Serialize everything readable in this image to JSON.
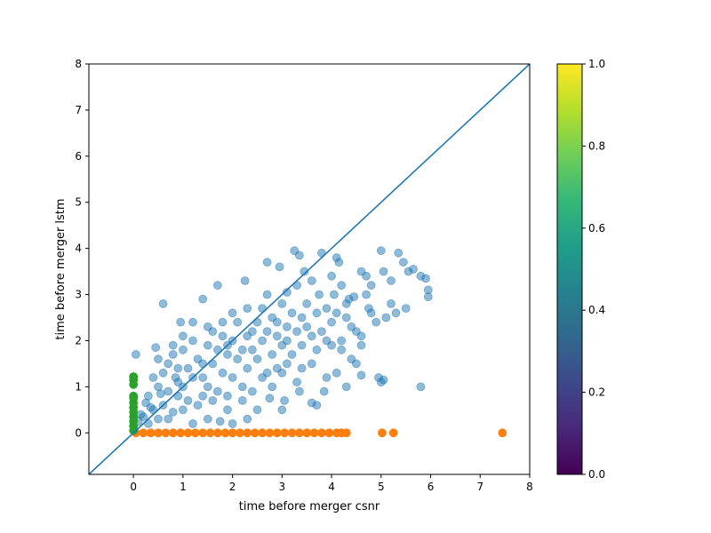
{
  "chart_data": {
    "type": "scatter",
    "title": "",
    "xlabel": "time before merger csnr",
    "ylabel": "time before merger lstm",
    "xlim": [
      -0.9,
      8
    ],
    "ylim": [
      -0.9,
      8
    ],
    "xticks": [
      0,
      1,
      2,
      3,
      4,
      5,
      6,
      7,
      8
    ],
    "yticks": [
      0,
      1,
      2,
      3,
      4,
      5,
      6,
      7,
      8
    ],
    "grid": false,
    "legend": "none",
    "reference_line": {
      "x": [
        -0.9,
        8
      ],
      "y": [
        -0.9,
        8
      ],
      "color": "#1f77b4"
    },
    "series": [
      {
        "color": "#1f77b4",
        "alpha": 0.5,
        "description_points": "dense cloud roughly following y = 0.65x",
        "points": [
          [
            0.05,
            1.7
          ],
          [
            0.6,
            2.8
          ],
          [
            0.95,
            2.4
          ],
          [
            1.4,
            2.9
          ],
          [
            1.7,
            3.2
          ],
          [
            2.25,
            3.3
          ],
          [
            2.7,
            3.7
          ],
          [
            2.95,
            3.6
          ],
          [
            3.25,
            3.95
          ],
          [
            3.35,
            3.85
          ],
          [
            3.45,
            3.5
          ],
          [
            3.3,
            3.2
          ],
          [
            3.6,
            3.3
          ],
          [
            3.8,
            3.9
          ],
          [
            4.1,
            3.8
          ],
          [
            4.15,
            3.7
          ],
          [
            4.0,
            3.4
          ],
          [
            4.2,
            3.2
          ],
          [
            4.35,
            2.9
          ],
          [
            4.6,
            3.5
          ],
          [
            4.7,
            3.4
          ],
          [
            4.8,
            3.2
          ],
          [
            5.0,
            3.95
          ],
          [
            5.05,
            3.5
          ],
          [
            5.2,
            3.3
          ],
          [
            5.35,
            3.9
          ],
          [
            5.45,
            3.7
          ],
          [
            5.55,
            3.5
          ],
          [
            5.65,
            3.55
          ],
          [
            5.8,
            3.4
          ],
          [
            5.9,
            3.35
          ],
          [
            5.95,
            3.1
          ],
          [
            5.95,
            2.95
          ],
          [
            5.5,
            2.7
          ],
          [
            5.3,
            2.6
          ],
          [
            5.1,
            2.5
          ],
          [
            4.9,
            2.4
          ],
          [
            4.75,
            2.7
          ],
          [
            4.5,
            2.2
          ],
          [
            4.6,
            1.9
          ],
          [
            4.4,
            1.6
          ],
          [
            4.2,
            2.0
          ],
          [
            4.0,
            1.9
          ],
          [
            4.5,
            1.5
          ],
          [
            4.3,
            1.0
          ],
          [
            4.6,
            1.25
          ],
          [
            4.95,
            1.2
          ],
          [
            5.0,
            1.1
          ],
          [
            5.05,
            1.15
          ],
          [
            5.8,
            1.0
          ],
          [
            4.1,
            1.3
          ],
          [
            3.9,
            1.2
          ],
          [
            3.85,
            0.9
          ],
          [
            3.6,
            0.65
          ],
          [
            3.7,
            0.6
          ],
          [
            3.35,
            0.9
          ],
          [
            3.05,
            0.7
          ],
          [
            3.0,
            0.5
          ],
          [
            2.75,
            0.75
          ],
          [
            2.5,
            0.5
          ],
          [
            2.3,
            0.3
          ],
          [
            2.0,
            0.2
          ],
          [
            1.75,
            0.25
          ],
          [
            1.5,
            0.3
          ],
          [
            1.2,
            0.2
          ],
          [
            3.3,
            1.1
          ],
          [
            3.0,
            1.3
          ],
          [
            2.8,
            1.0
          ],
          [
            2.6,
            1.2
          ],
          [
            2.4,
            0.9
          ],
          [
            2.2,
            1.0
          ],
          [
            1.9,
            0.8
          ],
          [
            1.6,
            0.7
          ],
          [
            1.3,
            0.6
          ],
          [
            1.0,
            0.5
          ],
          [
            0.8,
            0.45
          ],
          [
            0.5,
            0.3
          ],
          [
            0.3,
            0.2
          ],
          [
            0.2,
            0.35
          ],
          [
            0.4,
            0.5
          ],
          [
            0.6,
            0.6
          ],
          [
            0.7,
            0.9
          ],
          [
            0.5,
            1.0
          ],
          [
            0.3,
            0.8
          ],
          [
            0.4,
            1.2
          ],
          [
            0.5,
            1.6
          ],
          [
            0.45,
            1.85
          ],
          [
            0.7,
            1.5
          ],
          [
            0.85,
            1.2
          ],
          [
            1.0,
            1.0
          ],
          [
            1.1,
            1.4
          ],
          [
            1.0,
            1.8
          ],
          [
            1.2,
            2.0
          ],
          [
            1.3,
            1.6
          ],
          [
            1.4,
            1.2
          ],
          [
            1.5,
            1.0
          ],
          [
            1.6,
            1.5
          ],
          [
            1.5,
            1.9
          ],
          [
            1.6,
            2.2
          ],
          [
            1.8,
            2.1
          ],
          [
            1.9,
            1.7
          ],
          [
            1.8,
            1.3
          ],
          [
            2.0,
            1.2
          ],
          [
            2.1,
            1.6
          ],
          [
            2.0,
            2.0
          ],
          [
            2.1,
            2.4
          ],
          [
            2.3,
            2.1
          ],
          [
            2.4,
            1.8
          ],
          [
            2.3,
            1.4
          ],
          [
            2.5,
            1.6
          ],
          [
            2.6,
            2.0
          ],
          [
            2.5,
            2.4
          ],
          [
            2.6,
            2.7
          ],
          [
            2.8,
            2.5
          ],
          [
            2.9,
            2.1
          ],
          [
            2.8,
            1.7
          ],
          [
            3.0,
            1.9
          ],
          [
            3.1,
            2.3
          ],
          [
            3.0,
            2.8
          ],
          [
            3.2,
            2.6
          ],
          [
            3.3,
            2.2
          ],
          [
            3.2,
            1.7
          ],
          [
            3.4,
            1.9
          ],
          [
            3.5,
            2.3
          ],
          [
            3.5,
            2.8
          ],
          [
            3.7,
            2.6
          ],
          [
            3.8,
            2.2
          ],
          [
            3.7,
            1.8
          ],
          [
            3.9,
            2.0
          ],
          [
            4.0,
            2.4
          ],
          [
            4.1,
            2.6
          ],
          [
            4.3,
            2.5
          ],
          [
            4.4,
            2.3
          ],
          [
            4.2,
            1.8
          ],
          [
            3.6,
            1.5
          ],
          [
            3.4,
            1.4
          ],
          [
            3.1,
            1.5
          ],
          [
            2.9,
            1.4
          ],
          [
            2.7,
            1.3
          ],
          [
            2.2,
            0.7
          ],
          [
            1.9,
            0.5
          ],
          [
            1.7,
            0.9
          ],
          [
            1.4,
            0.8
          ],
          [
            1.1,
            0.7
          ],
          [
            0.9,
            0.8
          ],
          [
            0.7,
            0.3
          ],
          [
            0.35,
            0.55
          ],
          [
            0.25,
            0.65
          ],
          [
            0.15,
            0.4
          ],
          [
            0.1,
            0.25
          ],
          [
            0.6,
            1.3
          ],
          [
            0.8,
            1.7
          ],
          [
            0.9,
            1.4
          ],
          [
            1.2,
            1.2
          ],
          [
            1.7,
            1.8
          ],
          [
            2.2,
            1.8
          ],
          [
            2.7,
            2.2
          ],
          [
            3.1,
            2.0
          ],
          [
            3.6,
            2.1
          ],
          [
            4.6,
            2.1
          ],
          [
            4.8,
            2.6
          ],
          [
            4.3,
            2.8
          ],
          [
            3.9,
            2.7
          ],
          [
            3.4,
            2.5
          ],
          [
            2.9,
            2.4
          ],
          [
            2.4,
            2.2
          ],
          [
            1.9,
            1.9
          ],
          [
            1.4,
            1.5
          ],
          [
            0.9,
            1.1
          ],
          [
            0.55,
            0.85
          ],
          [
            3.75,
            3.0
          ],
          [
            4.05,
            3.0
          ],
          [
            4.45,
            2.95
          ],
          [
            4.7,
            3.0
          ],
          [
            5.2,
            2.8
          ],
          [
            3.1,
            3.05
          ],
          [
            2.7,
            3.0
          ],
          [
            2.3,
            2.7
          ],
          [
            2.0,
            2.6
          ],
          [
            1.8,
            2.4
          ],
          [
            1.5,
            2.3
          ],
          [
            1.2,
            2.4
          ],
          [
            1.0,
            2.1
          ],
          [
            0.8,
            1.9
          ]
        ]
      },
      {
        "color": "#ff7f0e",
        "alpha": 1.0,
        "points": [
          [
            0.05,
            0
          ],
          [
            0.2,
            0
          ],
          [
            0.35,
            0
          ],
          [
            0.5,
            0
          ],
          [
            0.65,
            0
          ],
          [
            0.8,
            0
          ],
          [
            0.95,
            0
          ],
          [
            1.1,
            0
          ],
          [
            1.25,
            0
          ],
          [
            1.4,
            0
          ],
          [
            1.55,
            0
          ],
          [
            1.7,
            0
          ],
          [
            1.85,
            0
          ],
          [
            2.0,
            0
          ],
          [
            2.15,
            0
          ],
          [
            2.3,
            0
          ],
          [
            2.45,
            0
          ],
          [
            2.6,
            0
          ],
          [
            2.75,
            0
          ],
          [
            2.9,
            0
          ],
          [
            3.05,
            0
          ],
          [
            3.2,
            0
          ],
          [
            3.35,
            0
          ],
          [
            3.5,
            0
          ],
          [
            3.65,
            0
          ],
          [
            3.8,
            0
          ],
          [
            3.95,
            0
          ],
          [
            4.1,
            0
          ],
          [
            4.2,
            0
          ],
          [
            4.3,
            0
          ],
          [
            5.02,
            0
          ],
          [
            5.25,
            0
          ],
          [
            7.45,
            0
          ]
        ]
      },
      {
        "color": "#2ca02c",
        "alpha": 1.0,
        "points": [
          [
            0,
            0.05
          ],
          [
            0,
            0.15
          ],
          [
            0,
            0.25
          ],
          [
            0,
            0.35
          ],
          [
            0,
            0.45
          ],
          [
            0,
            0.55
          ],
          [
            0,
            0.65
          ],
          [
            0,
            0.75
          ],
          [
            0,
            0.8
          ],
          [
            0,
            1.05
          ],
          [
            0,
            1.15
          ],
          [
            0,
            1.22
          ]
        ]
      }
    ],
    "colorbar": {
      "colormap": "viridis",
      "range": [
        0,
        1
      ],
      "ticks": [
        "0.0",
        "0.2",
        "0.4",
        "0.6",
        "0.8",
        "1.0"
      ],
      "stops": [
        "#440154",
        "#482878",
        "#3e4989",
        "#31688e",
        "#26828e",
        "#1f9e89",
        "#35b779",
        "#6ece58",
        "#b5de2b",
        "#fde725"
      ]
    }
  }
}
